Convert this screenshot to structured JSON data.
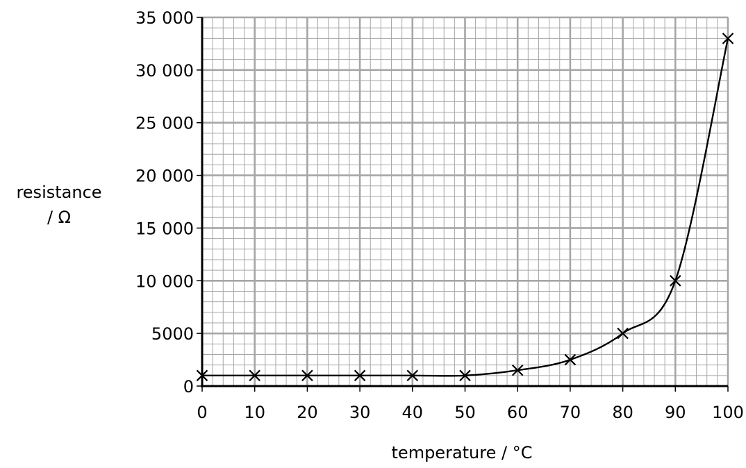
{
  "chart_data": {
    "type": "line",
    "xlabel": "temperature / °C",
    "ylabel_lines": [
      "resistance",
      "/ Ω"
    ],
    "xlim": [
      0,
      100
    ],
    "ylim": [
      0,
      35000
    ],
    "x_ticks": [
      0,
      10,
      20,
      30,
      40,
      50,
      60,
      70,
      80,
      90,
      100
    ],
    "x_tick_labels": [
      "0",
      "10",
      "20",
      "30",
      "40",
      "50",
      "60",
      "70",
      "80",
      "90",
      "100"
    ],
    "y_ticks": [
      0,
      5000,
      10000,
      15000,
      20000,
      25000,
      30000,
      35000
    ],
    "y_tick_labels": [
      "0",
      "5000",
      "10 000",
      "15 000",
      "20 000",
      "25 000",
      "30 000",
      "35 000"
    ],
    "grid": true,
    "x_minor_step": 2,
    "y_minor_step": 1000,
    "series": [
      {
        "marker": "x",
        "x": [
          0,
          10,
          20,
          30,
          40,
          50,
          60,
          70,
          80,
          90,
          100
        ],
        "y": [
          1000,
          1000,
          1000,
          1000,
          1000,
          1000,
          1500,
          2500,
          5000,
          10000,
          33000
        ]
      }
    ],
    "colors": {
      "major_grid": "#a6a6a6",
      "minor_grid": "#a6a6a6",
      "line": "#000000"
    }
  }
}
